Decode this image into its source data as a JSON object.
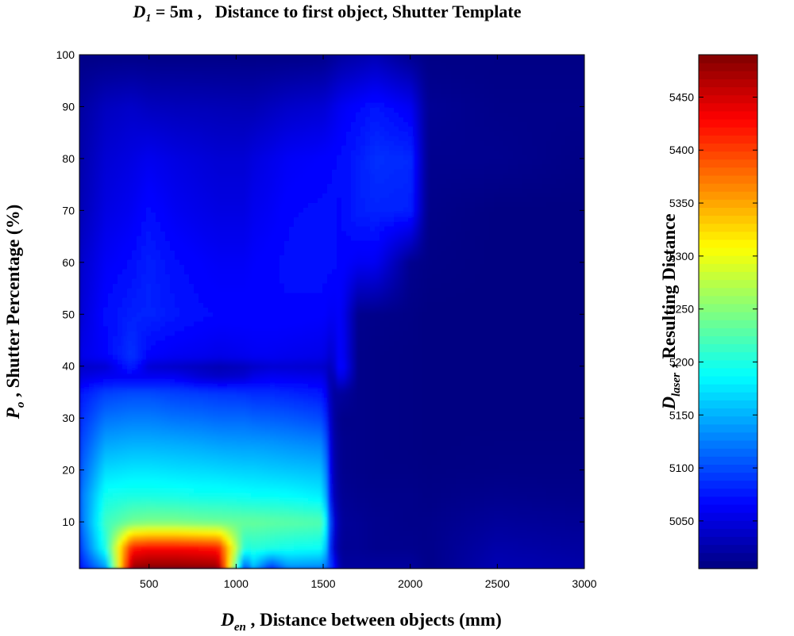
{
  "chart_data": {
    "type": "heatmap",
    "title": {
      "var": "D",
      "sub": "1",
      "text": " = 5m ,   Distance to first object, Shutter Template"
    },
    "xlabel": {
      "var": "D",
      "sub": "en",
      "text": " , Distance between objects (mm)"
    },
    "ylabel": {
      "var": "P",
      "sub": "o",
      "text": " , Shutter Percentage (%)"
    },
    "colorbar_label": {
      "var": "D",
      "sub": "laser",
      "text": " , Resulting Distance"
    },
    "xlim": [
      100,
      3000
    ],
    "ylim": [
      1,
      100
    ],
    "xticks": [
      500,
      1000,
      1500,
      2000,
      2500,
      3000
    ],
    "yticks": [
      10,
      20,
      30,
      40,
      50,
      60,
      70,
      80,
      90,
      100
    ],
    "colorbar_range": [
      5005,
      5490
    ],
    "colorbar_ticks": [
      5050,
      5100,
      5150,
      5200,
      5250,
      5300,
      5350,
      5400,
      5450
    ],
    "colormap": "jet",
    "x": [
      100,
      250,
      400,
      500,
      650,
      800,
      900,
      1050,
      1100,
      1200,
      1300,
      1500,
      1550,
      1600,
      1700,
      1800,
      2000,
      2100,
      2500,
      3000
    ],
    "y": [
      1,
      5,
      10,
      15,
      20,
      25,
      30,
      35,
      38,
      40,
      42,
      50,
      60,
      70,
      80,
      90,
      100
    ],
    "z": [
      [
        5070,
        5135,
        5480,
        5488,
        5488,
        5485,
        5482,
        5090,
        5150,
        5080,
        5130,
        5125,
        5090,
        5020,
        5020,
        5020,
        5020,
        5010,
        5030,
        5025
      ],
      [
        5090,
        5200,
        5420,
        5430,
        5430,
        5425,
        5420,
        5200,
        5205,
        5200,
        5195,
        5190,
        5050,
        5015,
        5015,
        5012,
        5012,
        5010,
        5025,
        5020
      ],
      [
        5110,
        5215,
        5240,
        5245,
        5245,
        5240,
        5238,
        5235,
        5235,
        5232,
        5230,
        5225,
        5060,
        5018,
        5015,
        5012,
        5010,
        5010,
        5018,
        5015
      ],
      [
        5115,
        5195,
        5200,
        5200,
        5198,
        5195,
        5195,
        5192,
        5190,
        5190,
        5188,
        5180,
        5040,
        5015,
        5012,
        5010,
        5010,
        5008,
        5012,
        5010
      ],
      [
        5105,
        5170,
        5175,
        5175,
        5172,
        5170,
        5168,
        5165,
        5165,
        5162,
        5160,
        5155,
        5035,
        5012,
        5010,
        5008,
        5008,
        5007,
        5008,
        5008
      ],
      [
        5095,
        5145,
        5150,
        5150,
        5148,
        5145,
        5142,
        5140,
        5140,
        5138,
        5135,
        5130,
        5030,
        5012,
        5010,
        5008,
        5007,
        5006,
        5007,
        5007
      ],
      [
        5085,
        5120,
        5125,
        5125,
        5120,
        5118,
        5115,
        5115,
        5112,
        5110,
        5108,
        5100,
        5025,
        5010,
        5010,
        5008,
        5007,
        5006,
        5006,
        5006
      ],
      [
        5075,
        5095,
        5100,
        5100,
        5095,
        5092,
        5090,
        5088,
        5085,
        5085,
        5082,
        5075,
        5020,
        5020,
        5010,
        5008,
        5007,
        5006,
        5006,
        5006
      ],
      [
        5050,
        5060,
        5060,
        5060,
        5060,
        5045,
        5040,
        5045,
        5055,
        5060,
        5058,
        5055,
        5020,
        5060,
        5010,
        5008,
        5007,
        5006,
        5006,
        5006
      ],
      [
        5040,
        5045,
        5080,
        5045,
        5040,
        5035,
        5030,
        5035,
        5040,
        5045,
        5045,
        5042,
        5030,
        5075,
        5010,
        5008,
        5007,
        5006,
        5006,
        5006
      ],
      [
        5055,
        5065,
        5090,
        5065,
        5060,
        5058,
        5055,
        5058,
        5060,
        5060,
        5058,
        5055,
        5040,
        5070,
        5010,
        5008,
        5007,
        5006,
        5006,
        5006
      ],
      [
        5045,
        5070,
        5080,
        5082,
        5075,
        5070,
        5068,
        5068,
        5068,
        5068,
        5068,
        5066,
        5060,
        5065,
        5012,
        5010,
        5008,
        5006,
        5006,
        5006
      ],
      [
        5040,
        5062,
        5070,
        5080,
        5070,
        5065,
        5062,
        5062,
        5065,
        5068,
        5070,
        5072,
        5070,
        5068,
        5060,
        5060,
        5012,
        5008,
        5006,
        5006
      ],
      [
        5030,
        5052,
        5060,
        5070,
        5060,
        5055,
        5052,
        5052,
        5058,
        5062,
        5068,
        5070,
        5070,
        5068,
        5080,
        5082,
        5080,
        5010,
        5006,
        5006
      ],
      [
        5025,
        5045,
        5052,
        5058,
        5052,
        5048,
        5045,
        5045,
        5050,
        5056,
        5062,
        5066,
        5068,
        5070,
        5078,
        5088,
        5085,
        5012,
        5012,
        5008
      ],
      [
        5020,
        5035,
        5040,
        5035,
        5033,
        5032,
        5031,
        5030,
        5030,
        5035,
        5040,
        5045,
        5052,
        5060,
        5068,
        5075,
        5060,
        5015,
        5010,
        5010
      ],
      [
        5008,
        5008,
        5008,
        5008,
        5008,
        5008,
        5008,
        5008,
        5008,
        5008,
        5008,
        5010,
        5015,
        5020,
        5025,
        5030,
        5012,
        5008,
        5008,
        5008
      ]
    ],
    "grid": false
  }
}
